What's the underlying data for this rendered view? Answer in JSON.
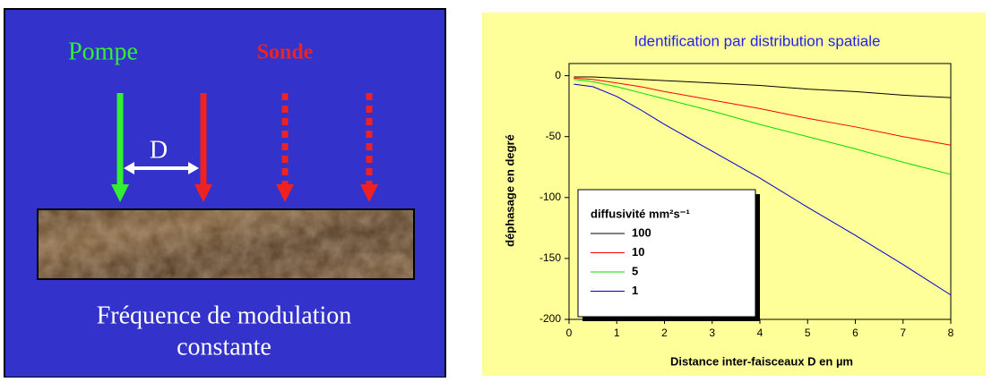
{
  "diagram": {
    "pump_label": "Pompe",
    "probe_label": "Sonde",
    "distance_label": "D",
    "caption_lines": [
      "Fréquence de modulation",
      "constante"
    ]
  },
  "chart_data": {
    "type": "line",
    "title": "Identification par distribution spatiale",
    "x_label": "Distance inter-faisceaux D en µm",
    "y_label": "déphasage en degré",
    "legend_title": "diffusivité mm²s⁻¹",
    "x": [
      0.1,
      0.5,
      1,
      1.5,
      2,
      3,
      4,
      5,
      6,
      7,
      8
    ],
    "series": [
      {
        "name": "100",
        "color": "#000000",
        "values": [
          -1,
          -1,
          -2,
          -3,
          -4,
          -6,
          -8,
          -11,
          -13,
          -16,
          -18
        ]
      },
      {
        "name": "10",
        "color": "#ff0000",
        "values": [
          -2,
          -3,
          -6,
          -9,
          -13,
          -20,
          -27,
          -35,
          -42,
          -50,
          -57
        ]
      },
      {
        "name": "5",
        "color": "#00dd00",
        "values": [
          -3,
          -5,
          -9,
          -14,
          -19,
          -29,
          -40,
          -50,
          -60,
          -71,
          -81
        ]
      },
      {
        "name": "1",
        "color": "#0000cc",
        "values": [
          -7,
          -9,
          -17,
          -28,
          -40,
          -62,
          -84,
          -108,
          -131,
          -155,
          -180
        ]
      }
    ],
    "xlim": [
      0,
      8
    ],
    "ylim": [
      -200,
      10
    ],
    "xticks": [
      0,
      1,
      2,
      3,
      4,
      5,
      6,
      7,
      8
    ],
    "yticks": [
      0,
      -50,
      -100,
      -150,
      -200
    ]
  }
}
